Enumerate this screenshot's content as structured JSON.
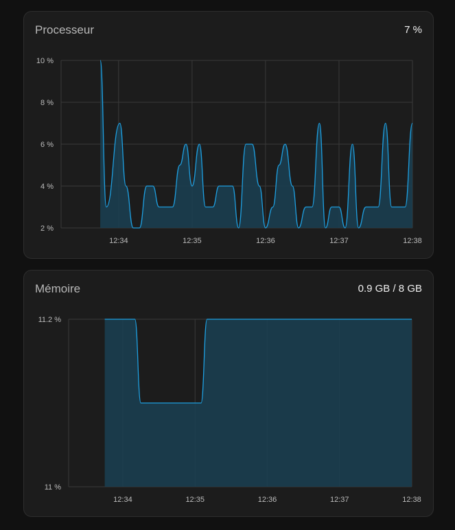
{
  "cpu": {
    "title": "Processeur",
    "value": "7 %",
    "chart_data": {
      "type": "area",
      "xlabel": "",
      "ylabel": "",
      "y_ticks": [
        "10 %",
        "8 %",
        "6 %",
        "4 %",
        "2 %"
      ],
      "y_tick_values": [
        10,
        8,
        6,
        4,
        2
      ],
      "ylim": [
        2,
        10
      ],
      "x_ticks": [
        "12:34",
        "12:35",
        "12:36",
        "12:37",
        "12:38"
      ],
      "x_tick_values": [
        "12:34",
        "12:35",
        "12:36",
        "12:37",
        "12:38"
      ],
      "xlim": [
        "12:33:13",
        "12:38:00"
      ],
      "grid": true,
      "series": [
        {
          "x": [
            "12:33:45",
            "12:33:50",
            "12:34:01",
            "12:34:06",
            "12:34:12",
            "12:34:17",
            "12:34:23",
            "12:34:28",
            "12:34:33",
            "12:34:39",
            "12:34:44",
            "12:34:50",
            "12:34:55",
            "12:35:00",
            "12:35:06",
            "12:35:11",
            "12:35:17",
            "12:35:22",
            "12:35:28",
            "12:35:33",
            "12:35:38",
            "12:35:44",
            "12:35:49",
            "12:35:55",
            "12:36:00",
            "12:36:06",
            "12:36:11",
            "12:36:16",
            "12:36:22",
            "12:36:27",
            "12:36:33",
            "12:36:38",
            "12:36:44",
            "12:36:49",
            "12:36:54",
            "12:37:00",
            "12:37:05",
            "12:37:11",
            "12:37:16",
            "12:37:22",
            "12:37:27",
            "12:37:32",
            "12:37:38",
            "12:37:43",
            "12:37:49",
            "12:37:54",
            "12:38:00"
          ],
          "values": [
            10,
            3,
            7,
            4,
            2,
            2,
            4,
            4,
            3,
            3,
            3,
            5,
            6,
            4,
            6,
            3,
            3,
            4,
            4,
            4,
            2,
            6,
            6,
            4,
            2,
            3,
            5,
            6,
            4,
            2,
            3,
            3,
            7,
            2,
            3,
            3,
            2,
            6,
            2,
            3,
            3,
            3,
            7,
            3,
            3,
            3,
            7
          ]
        }
      ]
    }
  },
  "mem": {
    "title": "Mémoire",
    "value": "0.9 GB / 8 GB",
    "chart_data": {
      "type": "area",
      "xlabel": "",
      "ylabel": "",
      "y_ticks": [
        "11.2 %",
        "11 %"
      ],
      "y_tick_values": [
        11.2,
        11.0
      ],
      "ylim": [
        11.0,
        11.2
      ],
      "x_ticks": [
        "12:34",
        "12:35",
        "12:36",
        "12:37",
        "12:38"
      ],
      "x_tick_values": [
        "12:34",
        "12:35",
        "12:36",
        "12:37",
        "12:38"
      ],
      "xlim": [
        "12:33:15",
        "12:38:00"
      ],
      "grid": true,
      "series": [
        {
          "x": [
            "12:33:45",
            "12:34:10",
            "12:34:15",
            "12:35:05",
            "12:35:10",
            "12:38:00"
          ],
          "values": [
            11.2,
            11.2,
            11.1,
            11.1,
            11.2,
            11.2
          ]
        }
      ]
    }
  },
  "colors": {
    "line": "#1e9fe0",
    "fill": "#1a3f52",
    "grid": "#3a3a3a",
    "card_bg": "#1c1c1c",
    "page_bg": "#111111"
  }
}
